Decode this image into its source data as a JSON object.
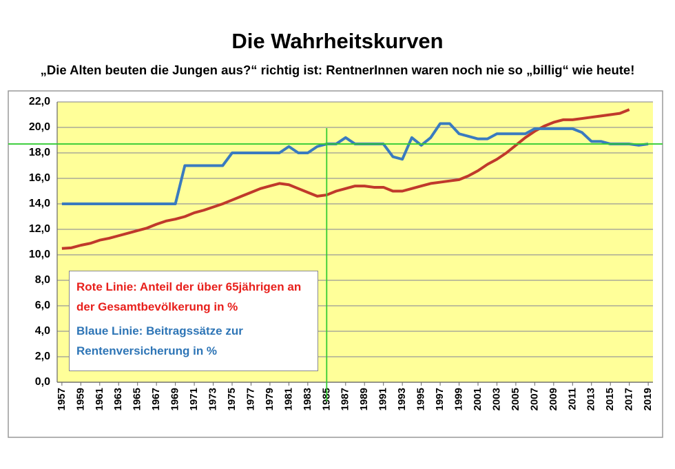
{
  "chart_data": {
    "type": "line",
    "title": "Die Wahrheitskurven",
    "subtitle": "„Die Alten beuten die Jungen aus?“ richtig ist: RentnerInnen waren noch nie so „billig“ wie heute!",
    "x": [
      1957,
      1958,
      1959,
      1960,
      1961,
      1962,
      1963,
      1964,
      1965,
      1966,
      1967,
      1968,
      1969,
      1970,
      1971,
      1972,
      1973,
      1974,
      1975,
      1976,
      1977,
      1978,
      1979,
      1980,
      1981,
      1982,
      1983,
      1984,
      1985,
      1986,
      1987,
      1988,
      1989,
      1990,
      1991,
      1992,
      1993,
      1994,
      1995,
      1996,
      1997,
      1998,
      1999,
      2000,
      2001,
      2002,
      2003,
      2004,
      2005,
      2006,
      2007,
      2008,
      2009,
      2010,
      2011,
      2012,
      2013,
      2014,
      2015,
      2016,
      2017,
      2018,
      2019
    ],
    "xlim": [
      1956.5,
      2019.5
    ],
    "xticks": [
      1957,
      1959,
      1961,
      1963,
      1965,
      1967,
      1969,
      1971,
      1973,
      1975,
      1977,
      1979,
      1981,
      1983,
      1985,
      1987,
      1989,
      1991,
      1993,
      1995,
      1997,
      1999,
      2001,
      2003,
      2005,
      2007,
      2009,
      2011,
      2013,
      2015,
      2017,
      2019
    ],
    "ylim": [
      0,
      22
    ],
    "yticks": [
      {
        "value": 0,
        "label": "0,0"
      },
      {
        "value": 2,
        "label": "2,0"
      },
      {
        "value": 4,
        "label": "4,0"
      },
      {
        "value": 6,
        "label": "6,0"
      },
      {
        "value": 8,
        "label": "8,0"
      },
      {
        "value": 10,
        "label": "10,0"
      },
      {
        "value": 12,
        "label": "12,0"
      },
      {
        "value": 14,
        "label": "14,0"
      },
      {
        "value": 16,
        "label": "16,0"
      },
      {
        "value": 18,
        "label": "18,0"
      },
      {
        "value": 20,
        "label": "20,0"
      },
      {
        "value": 22,
        "label": "22,0"
      }
    ],
    "grid": true,
    "series": [
      {
        "name": "Rote Linie: Anteil der über 65jährigen an der Gesamtbevölkerung in %",
        "color": "#c0392b",
        "legend_color": "#e8201c",
        "values": [
          10.5,
          10.55,
          10.75,
          10.9,
          11.15,
          11.3,
          11.5,
          11.7,
          11.9,
          12.1,
          12.4,
          12.65,
          12.8,
          13.0,
          13.3,
          13.5,
          13.75,
          14.0,
          14.3,
          14.6,
          14.9,
          15.2,
          15.4,
          15.6,
          15.5,
          15.2,
          14.9,
          14.6,
          14.7,
          15.0,
          15.2,
          15.4,
          15.4,
          15.3,
          15.3,
          15.0,
          15.0,
          15.2,
          15.4,
          15.6,
          15.7,
          15.8,
          15.9,
          16.2,
          16.6,
          17.1,
          17.5,
          18.0,
          18.6,
          19.2,
          19.7,
          20.1,
          20.4,
          20.6,
          20.6,
          20.7,
          20.8,
          20.9,
          21.0,
          21.1,
          21.4,
          null,
          null
        ]
      },
      {
        "name": "Blaue Linie: Beitragssätze zur Rentenversicherung in %",
        "color": "#3a7bbf",
        "legend_color": "#2e75b6",
        "values": [
          14.0,
          14.0,
          14.0,
          14.0,
          14.0,
          14.0,
          14.0,
          14.0,
          14.0,
          14.0,
          14.0,
          14.0,
          14.0,
          17.0,
          17.0,
          17.0,
          17.0,
          17.0,
          18.0,
          18.0,
          18.0,
          18.0,
          18.0,
          18.0,
          18.5,
          18.0,
          18.0,
          18.5,
          18.7,
          18.7,
          19.2,
          18.7,
          18.7,
          18.7,
          18.7,
          17.7,
          17.5,
          19.2,
          18.6,
          19.2,
          20.3,
          20.3,
          19.5,
          19.3,
          19.1,
          19.1,
          19.5,
          19.5,
          19.5,
          19.5,
          19.9,
          19.9,
          19.9,
          19.9,
          19.9,
          19.6,
          18.9,
          18.9,
          18.7,
          18.7,
          18.7,
          18.6,
          18.7
        ]
      }
    ],
    "reference_lines": [
      {
        "axis": "x",
        "value": 1985,
        "color": "#33cc33"
      },
      {
        "axis": "y",
        "value": 18.7,
        "color": "#33cc33"
      }
    ],
    "plot_background": "#ffff99"
  }
}
